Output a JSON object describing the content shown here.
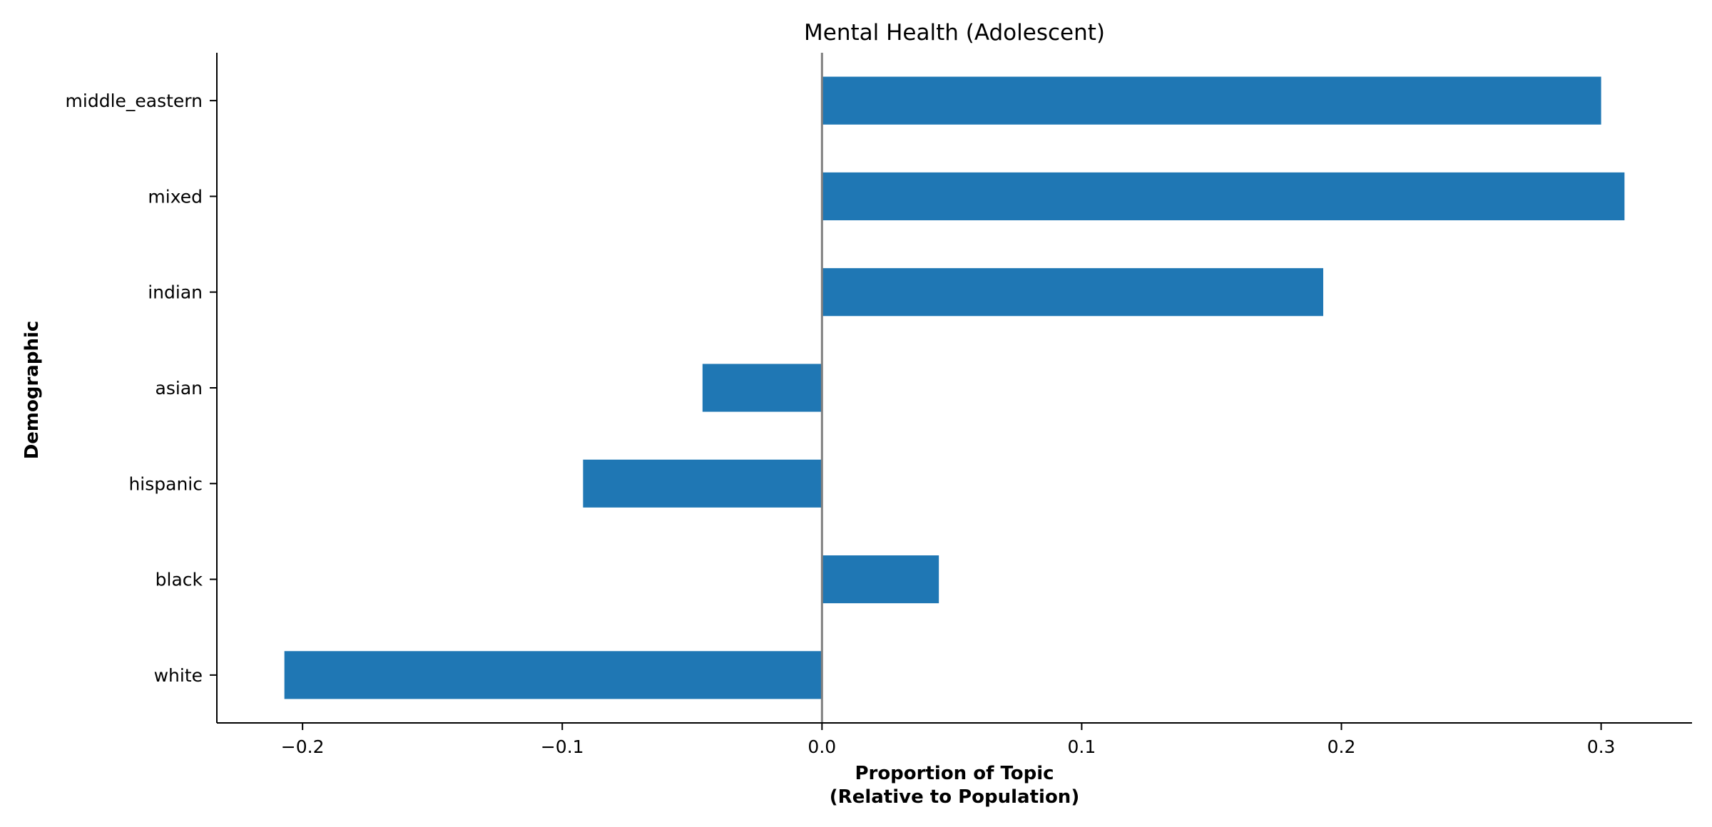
{
  "chart_data": {
    "type": "bar",
    "orientation": "horizontal",
    "title": "Mental Health (Adolescent)",
    "xlabel_lines": [
      "Proportion of Topic",
      "(Relative to Population)"
    ],
    "ylabel": "Demographic",
    "categories": [
      "middle_eastern",
      "mixed",
      "indian",
      "asian",
      "hispanic",
      "black",
      "white"
    ],
    "values": [
      0.3,
      0.309,
      0.193,
      -0.046,
      -0.092,
      0.045,
      -0.207
    ],
    "xlim": [
      -0.233,
      0.335
    ],
    "xticks": [
      -0.2,
      -0.1,
      0.0,
      0.1,
      0.2,
      0.3
    ],
    "xtick_labels": [
      "−0.2",
      "−0.1",
      "0.0",
      "0.1",
      "0.2",
      "0.3"
    ],
    "bar_color": "#1f77b4",
    "zero_line_color": "#808080",
    "grid": false,
    "legend": "none"
  }
}
